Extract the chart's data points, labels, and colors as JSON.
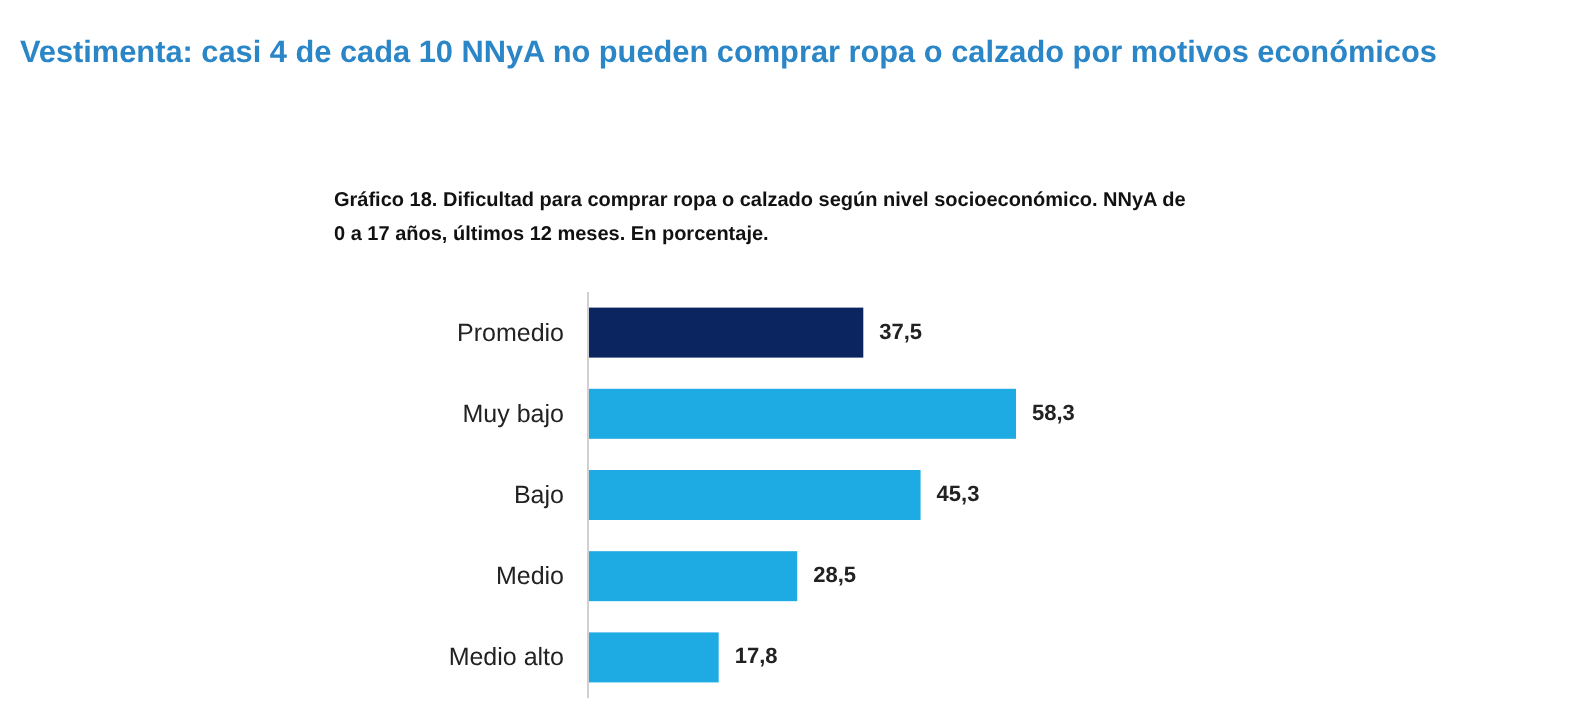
{
  "chart_data": {
    "type": "bar",
    "orientation": "horizontal",
    "title": "Vestimenta: casi 4 de cada 10 NNyA no pueden comprar ropa o calzado por motivos económicos",
    "subtitle": "Gráfico 18. Dificultad para comprar ropa o calzado según nivel socioeconómico. NNyA de 0 a 17 años, últimos 12 meses. En porcentaje.",
    "categories": [
      "Promedio",
      "Muy bajo",
      "Bajo",
      "Medio",
      "Medio alto"
    ],
    "values": [
      37.5,
      58.3,
      45.3,
      28.5,
      17.8
    ],
    "colors": [
      "#0b2560",
      "#1eaae2",
      "#1eaae2",
      "#1eaae2",
      "#1eaae2"
    ],
    "value_labels": [
      "37,5",
      "58,3",
      "45,3",
      "28,5",
      "17,8"
    ]
  }
}
